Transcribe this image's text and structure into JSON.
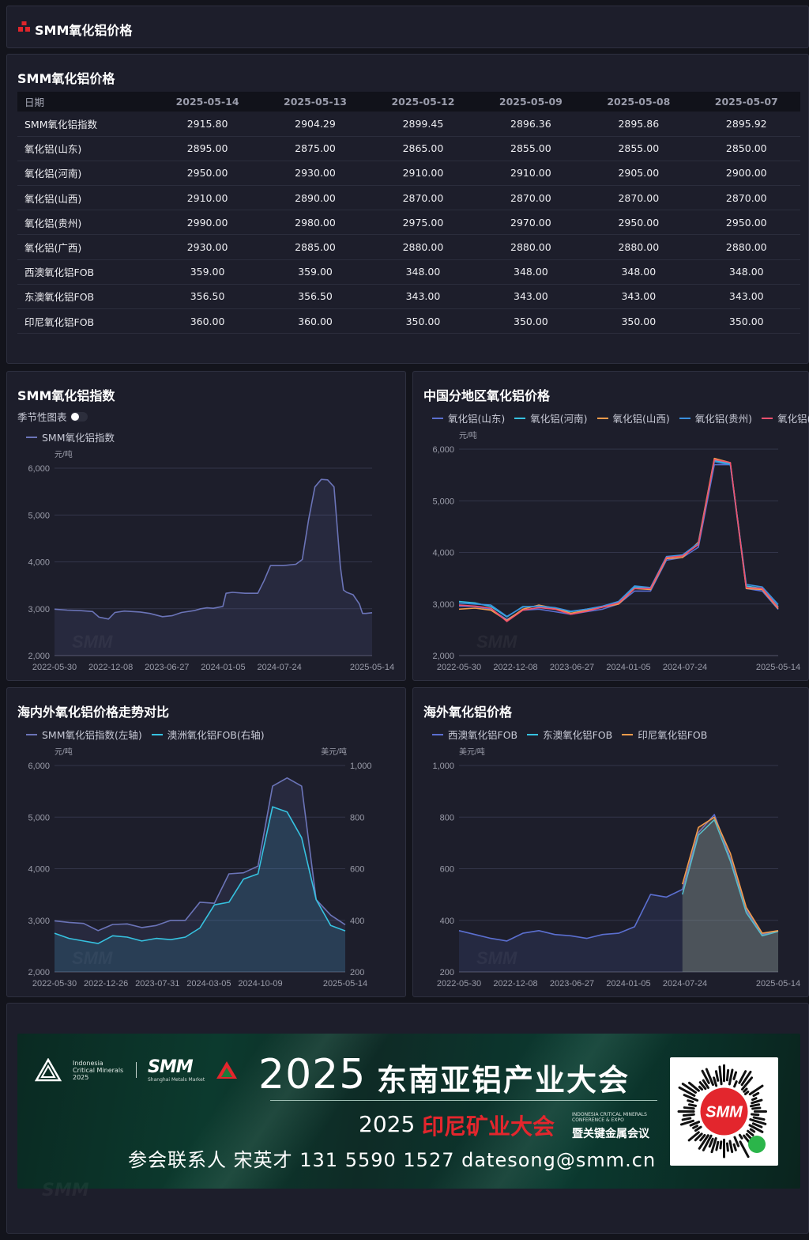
{
  "header": {
    "title": "SMM氧化铝价格",
    "icon": "smm-logo-icon"
  },
  "table": {
    "title": "SMM氧化铝价格",
    "columns": [
      "日期",
      "2025-05-14",
      "2025-05-13",
      "2025-05-12",
      "2025-05-09",
      "2025-05-08",
      "2025-05-07"
    ],
    "rows": [
      [
        "SMM氧化铝指数",
        "2915.80",
        "2904.29",
        "2899.45",
        "2896.36",
        "2895.86",
        "2895.92"
      ],
      [
        "氧化铝(山东)",
        "2895.00",
        "2875.00",
        "2865.00",
        "2855.00",
        "2855.00",
        "2850.00"
      ],
      [
        "氧化铝(河南)",
        "2950.00",
        "2930.00",
        "2910.00",
        "2910.00",
        "2905.00",
        "2900.00"
      ],
      [
        "氧化铝(山西)",
        "2910.00",
        "2890.00",
        "2870.00",
        "2870.00",
        "2870.00",
        "2870.00"
      ],
      [
        "氧化铝(贵州)",
        "2990.00",
        "2980.00",
        "2975.00",
        "2970.00",
        "2950.00",
        "2950.00"
      ],
      [
        "氧化铝(广西)",
        "2930.00",
        "2885.00",
        "2880.00",
        "2880.00",
        "2880.00",
        "2880.00"
      ],
      [
        "西澳氧化铝FOB",
        "359.00",
        "359.00",
        "348.00",
        "348.00",
        "348.00",
        "348.00"
      ],
      [
        "东澳氧化铝FOB",
        "356.50",
        "356.50",
        "343.00",
        "343.00",
        "343.00",
        "343.00"
      ],
      [
        "印尼氧化铝FOB",
        "360.00",
        "360.00",
        "350.00",
        "350.00",
        "350.00",
        "350.00"
      ]
    ]
  },
  "season_toggle_label": "季节性图表",
  "watermark": "SMM",
  "colors": {
    "index": "#6b74b8",
    "shandong": "#5b6fd0",
    "henan": "#36c2e0",
    "shanxi": "#f29b4b",
    "guizhou": "#3a8fdd",
    "guangxi": "#f0506e",
    "wa_fob": "#5b6fd0",
    "ea_fob": "#36c2e0",
    "id_fob": "#f29b4b"
  },
  "chart_data": [
    {
      "type": "area",
      "title": "SMM氧化铝指数",
      "unit": "元/吨",
      "ylim": [
        2000,
        6000
      ],
      "yticks": [
        "6,000",
        "5,000",
        "4,000",
        "3,000",
        "2,000"
      ],
      "xticks": [
        "2022-05-30",
        "2022-12-08",
        "2023-06-27",
        "2024-01-05",
        "2024-07-24",
        "2025-05-14"
      ],
      "series": [
        {
          "name": "SMM氧化铝指数",
          "x": [
            0,
            0.04,
            0.08,
            0.12,
            0.14,
            0.17,
            0.19,
            0.22,
            0.27,
            0.3,
            0.34,
            0.37,
            0.4,
            0.44,
            0.46,
            0.48,
            0.5,
            0.53,
            0.54,
            0.56,
            0.6,
            0.64,
            0.66,
            0.68,
            0.7,
            0.72,
            0.76,
            0.78,
            0.8,
            0.82,
            0.84,
            0.86,
            0.88,
            0.9,
            0.91,
            0.92,
            0.94,
            0.96,
            0.97,
            0.98,
            1.0
          ],
          "values": [
            2990,
            2970,
            2960,
            2940,
            2820,
            2780,
            2920,
            2950,
            2930,
            2900,
            2830,
            2850,
            2920,
            2960,
            3000,
            3020,
            3010,
            3050,
            3330,
            3350,
            3330,
            3330,
            3600,
            3920,
            3920,
            3920,
            3950,
            4050,
            4900,
            5600,
            5760,
            5750,
            5600,
            3900,
            3400,
            3350,
            3300,
            3100,
            2900,
            2900,
            2915
          ]
        }
      ]
    },
    {
      "type": "line",
      "title": "中国分地区氧化铝价格",
      "unit": "元/吨",
      "ylim": [
        2000,
        6000
      ],
      "yticks": [
        "6,000",
        "5,000",
        "4,000",
        "3,000",
        "2,000"
      ],
      "xticks": [
        "2022-05-30",
        "2022-12-08",
        "2023-06-27",
        "2024-01-05",
        "2024-07-24",
        "2025-05-14"
      ],
      "series": [
        {
          "name": "氧化铝(山东)",
          "values": [
            2960,
            2950,
            2900,
            2700,
            2880,
            2900,
            2850,
            2800,
            2850,
            2900,
            3000,
            3250,
            3250,
            3850,
            3900,
            4100,
            5700,
            5700,
            3300,
            3250,
            2895
          ]
        },
        {
          "name": "氧化铝(河南)",
          "values": [
            3050,
            3020,
            2950,
            2750,
            2950,
            2950,
            2900,
            2850,
            2900,
            2950,
            3030,
            3330,
            3300,
            3900,
            3950,
            4150,
            5780,
            5720,
            3350,
            3300,
            2950
          ]
        },
        {
          "name": "氧化铝(山西)",
          "values": [
            2900,
            2920,
            2880,
            2680,
            2900,
            2980,
            2920,
            2820,
            2880,
            2940,
            3000,
            3300,
            3280,
            3880,
            3900,
            4200,
            5820,
            5740,
            3300,
            3280,
            2910
          ]
        },
        {
          "name": "氧化铝(贵州)",
          "values": [
            3020,
            3000,
            2980,
            2760,
            2940,
            2960,
            2930,
            2860,
            2900,
            2960,
            3050,
            3350,
            3320,
            3920,
            3950,
            4180,
            5760,
            5700,
            3380,
            3330,
            2990
          ]
        },
        {
          "name": "氧化铝(广西)",
          "values": [
            2980,
            2960,
            2920,
            2660,
            2880,
            2930,
            2900,
            2800,
            2860,
            2940,
            3020,
            3300,
            3300,
            3900,
            3930,
            4150,
            5800,
            5740,
            3320,
            3300,
            2930
          ]
        }
      ]
    },
    {
      "type": "line",
      "title": "海内外氧化铝价格走势对比",
      "unit_left": "元/吨",
      "unit_right": "美元/吨",
      "ylim_left": [
        2000,
        6000
      ],
      "ylim_right": [
        200,
        1000
      ],
      "yticks_left": [
        "6,000",
        "5,000",
        "4,000",
        "3,000",
        "2,000"
      ],
      "yticks_right": [
        "1,000",
        "800",
        "600",
        "400",
        "200"
      ],
      "xticks": [
        "2022-05-30",
        "2022-12-26",
        "2023-07-31",
        "2024-03-05",
        "2024-10-09",
        "2025-05-14"
      ],
      "series": [
        {
          "name": "SMM氧化铝指数(左轴)",
          "axis": "left",
          "values": [
            2990,
            2960,
            2940,
            2800,
            2920,
            2930,
            2860,
            2900,
            3000,
            3000,
            3350,
            3330,
            3900,
            3920,
            4050,
            5600,
            5760,
            5600,
            3400,
            3100,
            2915
          ]
        },
        {
          "name": "澳洲氧化铝FOB(右轴)",
          "axis": "right",
          "values": [
            350,
            330,
            320,
            310,
            340,
            335,
            320,
            330,
            325,
            335,
            370,
            460,
            470,
            560,
            580,
            840,
            820,
            720,
            480,
            380,
            359
          ]
        }
      ]
    },
    {
      "type": "line",
      "title": "海外氧化铝价格",
      "unit": "美元/吨",
      "ylim": [
        200,
        1000
      ],
      "yticks": [
        "1,000",
        "800",
        "600",
        "400",
        "200"
      ],
      "xticks": [
        "2022-05-30",
        "2022-12-08",
        "2023-06-27",
        "2024-01-05",
        "2024-07-24",
        "2025-05-14"
      ],
      "series": [
        {
          "name": "西澳氧化铝FOB",
          "values": [
            360,
            345,
            330,
            320,
            350,
            360,
            345,
            340,
            330,
            345,
            350,
            375,
            500,
            490,
            520,
            740,
            810,
            640,
            440,
            345,
            359
          ]
        },
        {
          "name": "东澳氧化铝FOB",
          "values": [
            null,
            null,
            null,
            null,
            null,
            null,
            null,
            null,
            null,
            null,
            null,
            null,
            null,
            null,
            500,
            730,
            790,
            630,
            430,
            340,
            356.5
          ]
        },
        {
          "name": "印尼氧化铝FOB",
          "values": [
            null,
            null,
            null,
            null,
            null,
            null,
            null,
            null,
            null,
            null,
            null,
            null,
            null,
            null,
            540,
            760,
            800,
            660,
            450,
            350,
            360
          ]
        }
      ]
    }
  ],
  "banner": {
    "indonesia_label": "Indonesia Critical Minerals 2025",
    "smm_label": "SMM",
    "smm_sub": "Shanghai Metals Market",
    "year1": "2025",
    "title1": "东南亚铝产业大会",
    "year2": "2025",
    "title2": "印尼矿业大会",
    "sub_en": "INDONESIA CRITICAL MINERALS CONFERENCE & EXPO",
    "sub_cn": "暨关键金属会议",
    "contact": "参会联系人  宋英才  131 5590 1527  datesong@smm.cn",
    "qr_label": "SMM"
  }
}
